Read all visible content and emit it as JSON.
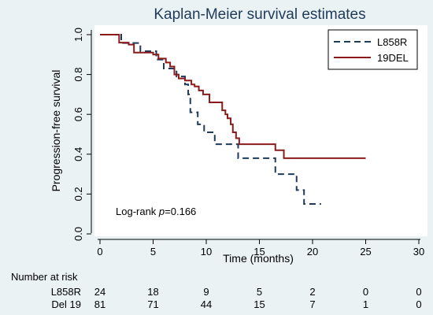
{
  "chart_data": {
    "type": "line",
    "subtype": "kaplan-meier step",
    "title": "Kaplan-Meier survival estimates",
    "xlabel": "Time (months)",
    "ylabel": "Progression-free survival",
    "xlim": [
      0,
      30
    ],
    "ylim": [
      0,
      1
    ],
    "xticks": [
      0,
      5,
      10,
      15,
      20,
      25,
      30
    ],
    "yticks": [
      0.0,
      0.2,
      0.4,
      0.6,
      0.8,
      1.0
    ],
    "ytick_labels": [
      "0.0",
      "0.2",
      "0.4",
      "0.6",
      "0.8",
      "1.0"
    ],
    "grid": false,
    "legend_position": "top-right",
    "annotation": {
      "prefix": "Log-rank ",
      "italic": "p",
      "suffix": "=0.166"
    },
    "series": [
      {
        "name": "L858R",
        "color": "#1f3a5a",
        "dash": "dashed",
        "points": [
          [
            0,
            1.0
          ],
          [
            2.0,
            0.958
          ],
          [
            3.8,
            0.917
          ],
          [
            5.3,
            0.875
          ],
          [
            6.0,
            0.83
          ],
          [
            7.2,
            0.79
          ],
          [
            8.0,
            0.75
          ],
          [
            8.3,
            0.7
          ],
          [
            8.5,
            0.61
          ],
          [
            9.2,
            0.55
          ],
          [
            9.8,
            0.51
          ],
          [
            10.8,
            0.45
          ],
          [
            13.0,
            0.38
          ],
          [
            15.0,
            0.38
          ],
          [
            16.5,
            0.3
          ],
          [
            18.5,
            0.22
          ],
          [
            19.2,
            0.15
          ],
          [
            20.8,
            0.15
          ]
        ]
      },
      {
        "name": "19DEL",
        "color": "#8b1a1a",
        "dash": "solid",
        "points": [
          [
            0,
            1.0
          ],
          [
            1.8,
            0.96
          ],
          [
            2.7,
            0.95
          ],
          [
            3.2,
            0.91
          ],
          [
            5.0,
            0.9
          ],
          [
            5.5,
            0.88
          ],
          [
            6.2,
            0.86
          ],
          [
            6.6,
            0.84
          ],
          [
            7.0,
            0.8
          ],
          [
            7.4,
            0.78
          ],
          [
            8.0,
            0.77
          ],
          [
            8.6,
            0.75
          ],
          [
            8.9,
            0.74
          ],
          [
            9.3,
            0.72
          ],
          [
            9.7,
            0.7
          ],
          [
            10.3,
            0.66
          ],
          [
            11.5,
            0.62
          ],
          [
            11.8,
            0.6
          ],
          [
            12.0,
            0.58
          ],
          [
            12.3,
            0.55
          ],
          [
            12.5,
            0.51
          ],
          [
            12.8,
            0.48
          ],
          [
            13.1,
            0.45
          ],
          [
            16.5,
            0.42
          ],
          [
            17.3,
            0.38
          ],
          [
            25.0,
            0.38
          ]
        ]
      }
    ],
    "risk_table": {
      "header": "Number at risk",
      "times": [
        0,
        5,
        10,
        15,
        20,
        25,
        30
      ],
      "rows": [
        {
          "label": "L858R",
          "values": [
            24,
            18,
            9,
            5,
            2,
            0,
            0
          ]
        },
        {
          "label": "Del 19",
          "values": [
            81,
            71,
            44,
            15,
            7,
            1,
            0
          ]
        }
      ]
    }
  }
}
